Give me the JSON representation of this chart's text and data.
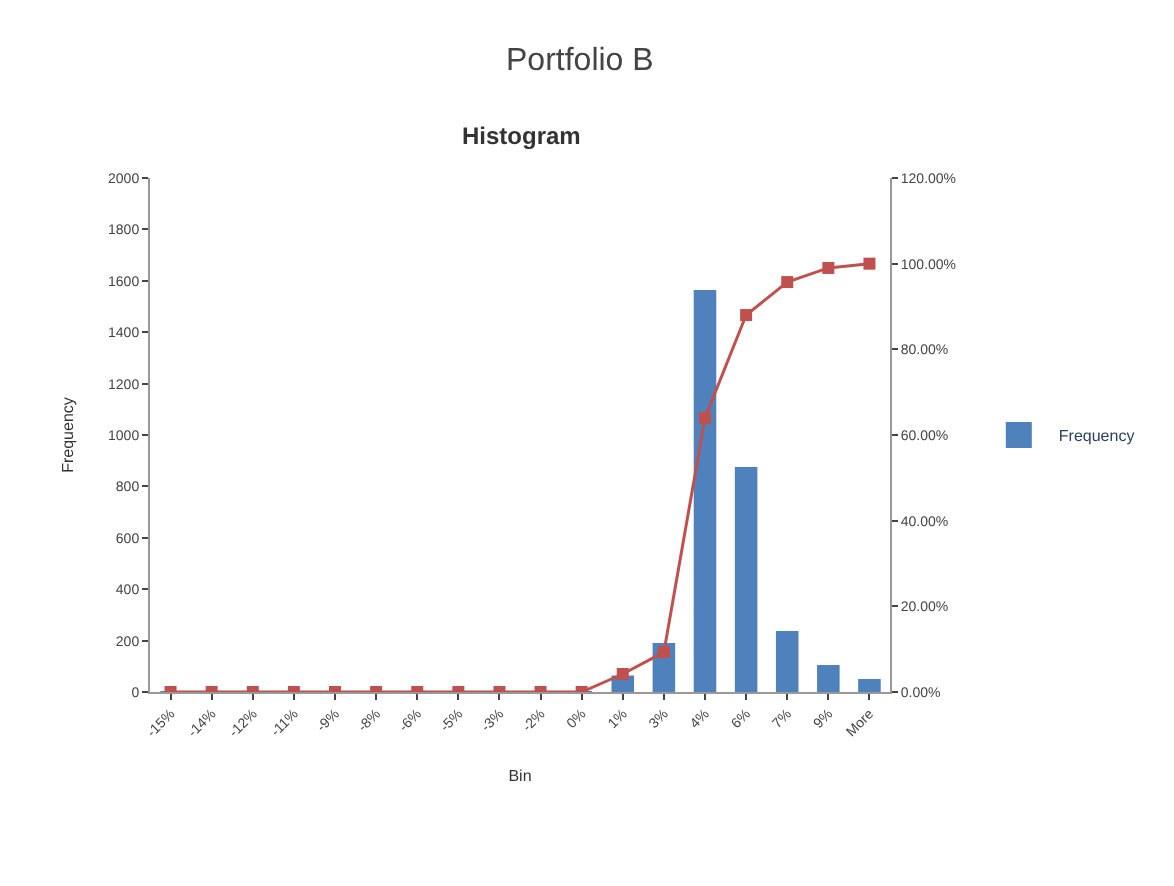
{
  "chart_data": {
    "type": "bar",
    "title": "Portfolio B",
    "subtitle": "Histogram",
    "xlabel": "Bin",
    "ylabel": "Frequency",
    "categories": [
      "-15%",
      "-14%",
      "-12%",
      "-11%",
      "-9%",
      "-8%",
      "-6%",
      "-5%",
      "-3%",
      "-2%",
      "0%",
      "1%",
      "3%",
      "4%",
      "6%",
      "7%",
      "9%",
      "More"
    ],
    "series": [
      {
        "name": "Frequency",
        "color": "#4f81bd",
        "values": [
          0,
          0,
          0,
          0,
          0,
          0,
          0,
          0,
          0,
          0,
          0,
          60,
          187,
          1560,
          872,
          233,
          101,
          47
        ]
      },
      {
        "type": "line",
        "axis": "y2",
        "color": "#c0504d",
        "marker": "square",
        "values": [
          0,
          0,
          0,
          0,
          0,
          0,
          0,
          0,
          0,
          0,
          0,
          4.2,
          9.3,
          64,
          88,
          95.7,
          99,
          100
        ]
      }
    ],
    "ylim": [
      0,
      2000
    ],
    "yticks": [
      0,
      200,
      400,
      600,
      800,
      1000,
      1200,
      1400,
      1600,
      1800,
      2000
    ],
    "y2lim": [
      0,
      120
    ],
    "y2ticks": [
      {
        "value": 0,
        "label": "0.00%"
      },
      {
        "value": 20,
        "label": "20.00%"
      },
      {
        "value": 40,
        "label": "40.00%"
      },
      {
        "value": 60,
        "label": "60.00%"
      },
      {
        "value": 80,
        "label": "80.00%"
      },
      {
        "value": 100,
        "label": "100.00%"
      },
      {
        "value": 120,
        "label": "120.00%"
      }
    ],
    "legend": "right"
  }
}
